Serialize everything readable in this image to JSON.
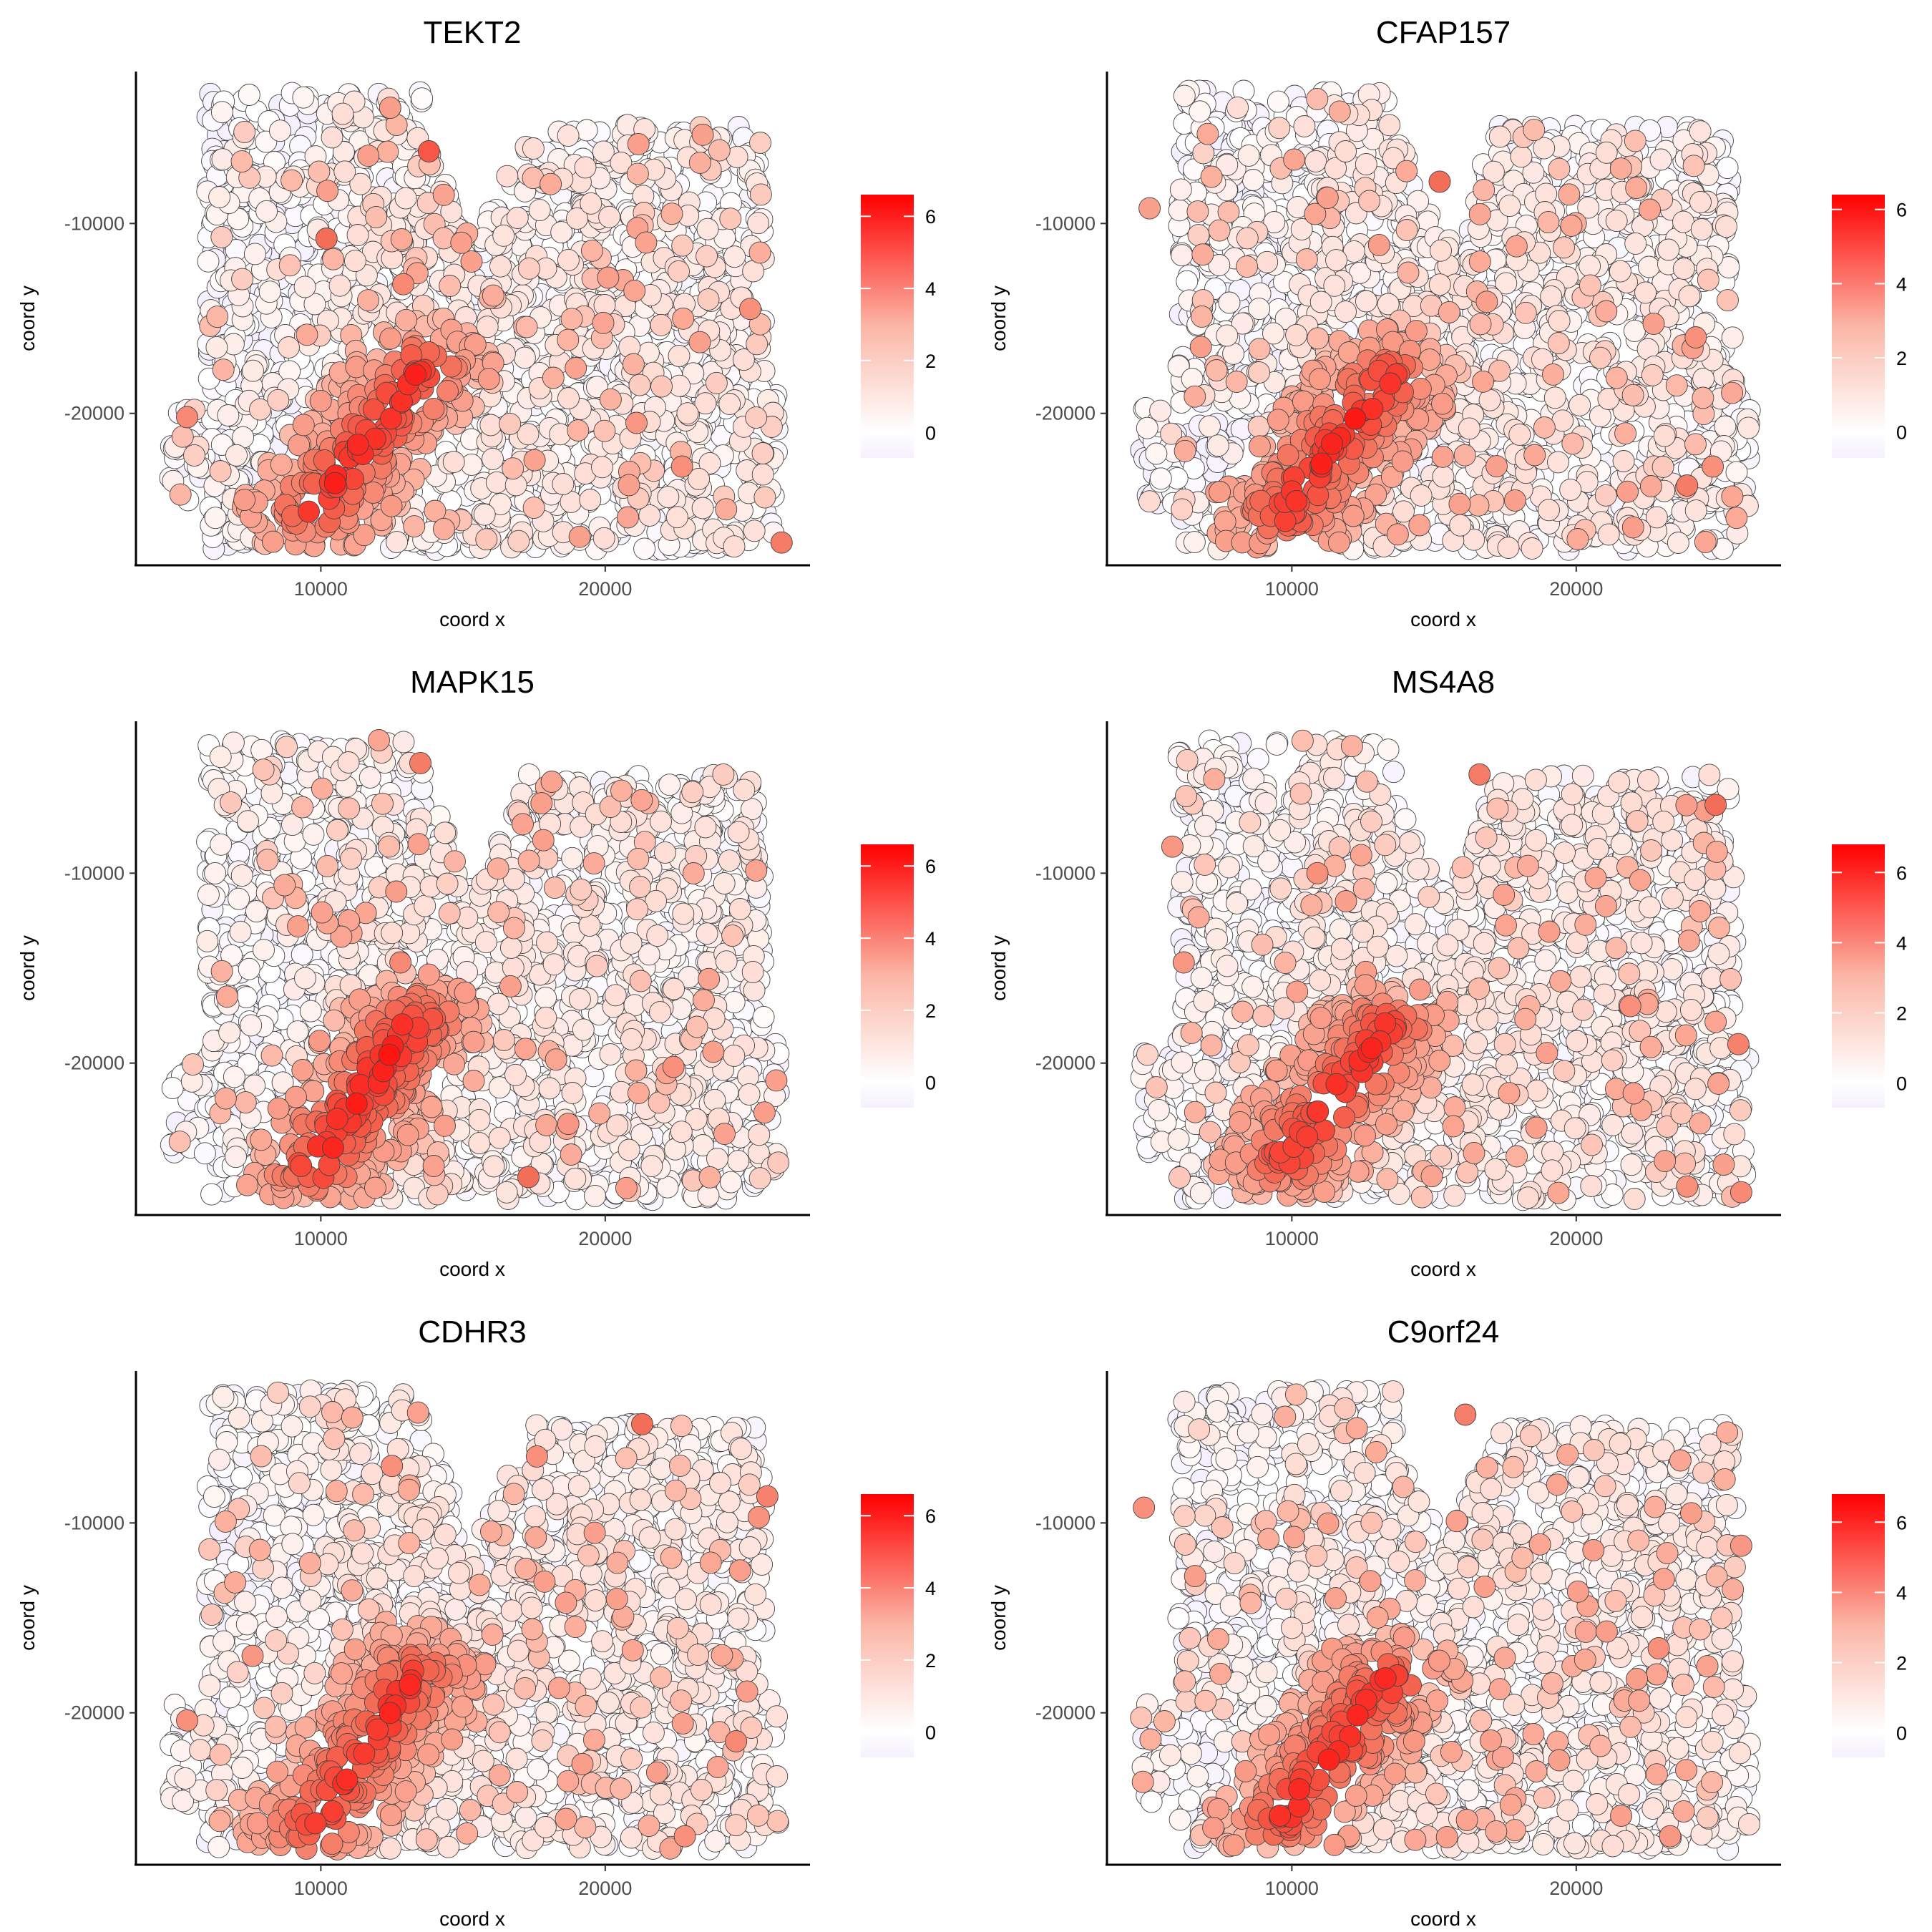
{
  "figure": {
    "panels": [
      {
        "title": "TEKT2"
      },
      {
        "title": "CFAP157"
      },
      {
        "title": "MAPK15"
      },
      {
        "title": "MS4A8"
      },
      {
        "title": "CDHR3"
      },
      {
        "title": "C9orf24"
      }
    ]
  },
  "colors": {
    "low": "#f5f0ff",
    "mid": "#ffffff",
    "high": "#ff0000",
    "spot_outline": "#444444",
    "axis": "#000000"
  },
  "chart_data": [
    {
      "type": "scatter",
      "title": "TEKT2",
      "xlabel": "coord x",
      "ylabel": "coord y",
      "x_ticks": [
        10000,
        20000
      ],
      "y_ticks": [
        -10000,
        -20000
      ],
      "x_tick_labels": [
        "10000",
        "20000"
      ],
      "y_tick_labels": [
        "-10000",
        "-20000"
      ],
      "xlim": [
        3500,
        27200
      ],
      "ylim": [
        -28000,
        -2000
      ],
      "color_scale": {
        "ticks": [
          0,
          2,
          4,
          6
        ],
        "tick_labels": [
          "0",
          "2",
          "4",
          "6"
        ],
        "range": [
          -0.7,
          6.6
        ]
      },
      "hotspot": {
        "from": [
          9800,
          -25000
        ],
        "to": [
          13600,
          -17500
        ],
        "peak": 5.8
      },
      "sparse_high": [
        [
          13800,
          -6200,
          4.5
        ],
        [
          10200,
          -10800,
          4.0
        ],
        [
          12900,
          -13200,
          3.2
        ],
        [
          26200,
          -26800,
          3.6
        ],
        [
          25100,
          -14500,
          3.0
        ],
        [
          22700,
          -22800,
          3.0
        ],
        [
          21100,
          -20500,
          2.8
        ],
        [
          19100,
          -26500,
          2.5
        ],
        [
          5300,
          -20200,
          3.2
        ],
        [
          15300,
          -12000,
          2.5
        ]
      ]
    },
    {
      "type": "scatter",
      "title": "CFAP157",
      "xlabel": "coord x",
      "ylabel": "coord y",
      "x_ticks": [
        10000,
        20000
      ],
      "y_ticks": [
        -10000,
        -20000
      ],
      "x_tick_labels": [
        "10000",
        "20000"
      ],
      "y_tick_labels": [
        "-10000",
        "-20000"
      ],
      "xlim": [
        3500,
        27200
      ],
      "ylim": [
        -28000,
        -2000
      ],
      "color_scale": {
        "ticks": [
          0,
          2,
          4,
          6
        ],
        "tick_labels": [
          "0",
          "2",
          "4",
          "6"
        ],
        "range": [
          -0.7,
          6.4
        ]
      },
      "hotspot": {
        "from": [
          9700,
          -25200
        ],
        "to": [
          13400,
          -18000
        ],
        "peak": 5.9
      },
      "sparse_high": [
        [
          15200,
          -7800,
          4.0
        ],
        [
          23900,
          -23800,
          3.6
        ],
        [
          24200,
          -16000,
          3.0
        ],
        [
          24800,
          -22800,
          3.0
        ],
        [
          22000,
          -26000,
          2.6
        ],
        [
          6800,
          -16500,
          2.6
        ],
        [
          5000,
          -9200,
          2.5
        ],
        [
          12700,
          -19500,
          3.5
        ],
        [
          17900,
          -11200,
          2.4
        ]
      ]
    },
    {
      "type": "scatter",
      "title": "MAPK15",
      "xlabel": "coord x",
      "ylabel": "coord y",
      "x_ticks": [
        10000,
        20000
      ],
      "y_ticks": [
        -10000,
        -20000
      ],
      "x_tick_labels": [
        "10000",
        "20000"
      ],
      "y_tick_labels": [
        "-10000",
        "-20000"
      ],
      "xlim": [
        3500,
        27200
      ],
      "ylim": [
        -28000,
        -2000
      ],
      "color_scale": {
        "ticks": [
          0,
          2,
          4,
          6
        ],
        "tick_labels": [
          "0",
          "2",
          "4",
          "6"
        ],
        "range": [
          -0.7,
          6.6
        ]
      },
      "hotspot": {
        "from": [
          9800,
          -25500
        ],
        "to": [
          13200,
          -17800
        ],
        "peak": 6.0
      },
      "sparse_high": [
        [
          17300,
          -26000,
          4.0
        ],
        [
          13500,
          -4200,
          3.6
        ],
        [
          12800,
          -14700,
          3.2
        ],
        [
          22400,
          -20200,
          3.0
        ],
        [
          25600,
          -22600,
          2.6
        ],
        [
          23800,
          -19400,
          2.5
        ],
        [
          9200,
          -12800,
          2.5
        ],
        [
          18700,
          -23200,
          2.8
        ]
      ]
    },
    {
      "type": "scatter",
      "title": "MS4A8",
      "xlabel": "coord x",
      "ylabel": "coord y",
      "x_ticks": [
        10000,
        20000
      ],
      "y_ticks": [
        -10000,
        -20000
      ],
      "x_tick_labels": [
        "10000",
        "20000"
      ],
      "y_tick_labels": [
        "-10000",
        "-20000"
      ],
      "xlim": [
        3500,
        27200
      ],
      "ylim": [
        -28000,
        -2000
      ],
      "color_scale": {
        "ticks": [
          0,
          2,
          4,
          6
        ],
        "tick_labels": [
          "0",
          "2",
          "4",
          "6"
        ],
        "range": [
          -0.7,
          6.8
        ]
      },
      "hotspot": {
        "from": [
          9800,
          -25000
        ],
        "to": [
          13300,
          -18200
        ],
        "peak": 5.8
      },
      "sparse_high": [
        [
          24900,
          -6400,
          4.0
        ],
        [
          16600,
          -4800,
          3.6
        ],
        [
          25700,
          -19000,
          3.4
        ],
        [
          21900,
          -17000,
          3.0
        ],
        [
          23900,
          -26500,
          3.0
        ],
        [
          25800,
          -26800,
          3.2
        ],
        [
          5800,
          -8600,
          2.8
        ],
        [
          10900,
          -10000,
          3.0
        ],
        [
          6200,
          -14700,
          2.8
        ],
        [
          18600,
          -23400,
          2.5
        ],
        [
          12600,
          -15200,
          2.6
        ]
      ]
    },
    {
      "type": "scatter",
      "title": "CDHR3",
      "xlabel": "coord x",
      "ylabel": "coord y",
      "x_ticks": [
        10000,
        20000
      ],
      "y_ticks": [
        -10000,
        -20000
      ],
      "x_tick_labels": [
        "10000",
        "20000"
      ],
      "y_tick_labels": [
        "-10000",
        "-20000"
      ],
      "xlim": [
        3500,
        27200
      ],
      "ylim": [
        -28000,
        -2000
      ],
      "color_scale": {
        "ticks": [
          0,
          2,
          4,
          6
        ],
        "tick_labels": [
          "0",
          "2",
          "4",
          "6"
        ],
        "range": [
          -0.7,
          6.6
        ]
      },
      "hotspot": {
        "from": [
          9700,
          -26000
        ],
        "to": [
          13300,
          -18000
        ],
        "peak": 5.7
      },
      "sparse_high": [
        [
          21300,
          -4800,
          4.0
        ],
        [
          25700,
          -8600,
          3.4
        ],
        [
          17600,
          -6500,
          3.0
        ],
        [
          24600,
          -21500,
          3.2
        ],
        [
          22800,
          -26500,
          3.0
        ],
        [
          7600,
          -17000,
          2.8
        ],
        [
          5300,
          -20400,
          3.0
        ],
        [
          15100,
          -17500,
          3.0
        ],
        [
          12500,
          -7000,
          3.0
        ],
        [
          19200,
          -22700,
          2.6
        ],
        [
          25400,
          -9700,
          2.9
        ]
      ]
    },
    {
      "type": "scatter",
      "title": "C9orf24",
      "xlabel": "coord x",
      "ylabel": "coord y",
      "x_ticks": [
        10000,
        20000
      ],
      "y_ticks": [
        -10000,
        -20000
      ],
      "x_tick_labels": [
        "10000",
        "20000"
      ],
      "y_tick_labels": [
        "-10000",
        "-20000"
      ],
      "xlim": [
        3500,
        27200
      ],
      "ylim": [
        -28000,
        -2000
      ],
      "color_scale": {
        "ticks": [
          0,
          2,
          4,
          6
        ],
        "tick_labels": [
          "0",
          "2",
          "4",
          "6"
        ],
        "range": [
          -0.7,
          6.8
        ]
      },
      "hotspot": {
        "from": [
          9700,
          -25500
        ],
        "to": [
          13400,
          -18200
        ],
        "peak": 5.8
      },
      "sparse_high": [
        [
          16100,
          -4300,
          3.5
        ],
        [
          13800,
          -18700,
          3.2
        ],
        [
          25800,
          -11200,
          2.8
        ],
        [
          22900,
          -16600,
          3.0
        ],
        [
          23300,
          -26500,
          2.8
        ],
        [
          4800,
          -9200,
          3.0
        ],
        [
          6600,
          -12800,
          2.6
        ],
        [
          19400,
          -22500,
          2.5
        ],
        [
          14300,
          -21500,
          2.8
        ]
      ]
    }
  ]
}
